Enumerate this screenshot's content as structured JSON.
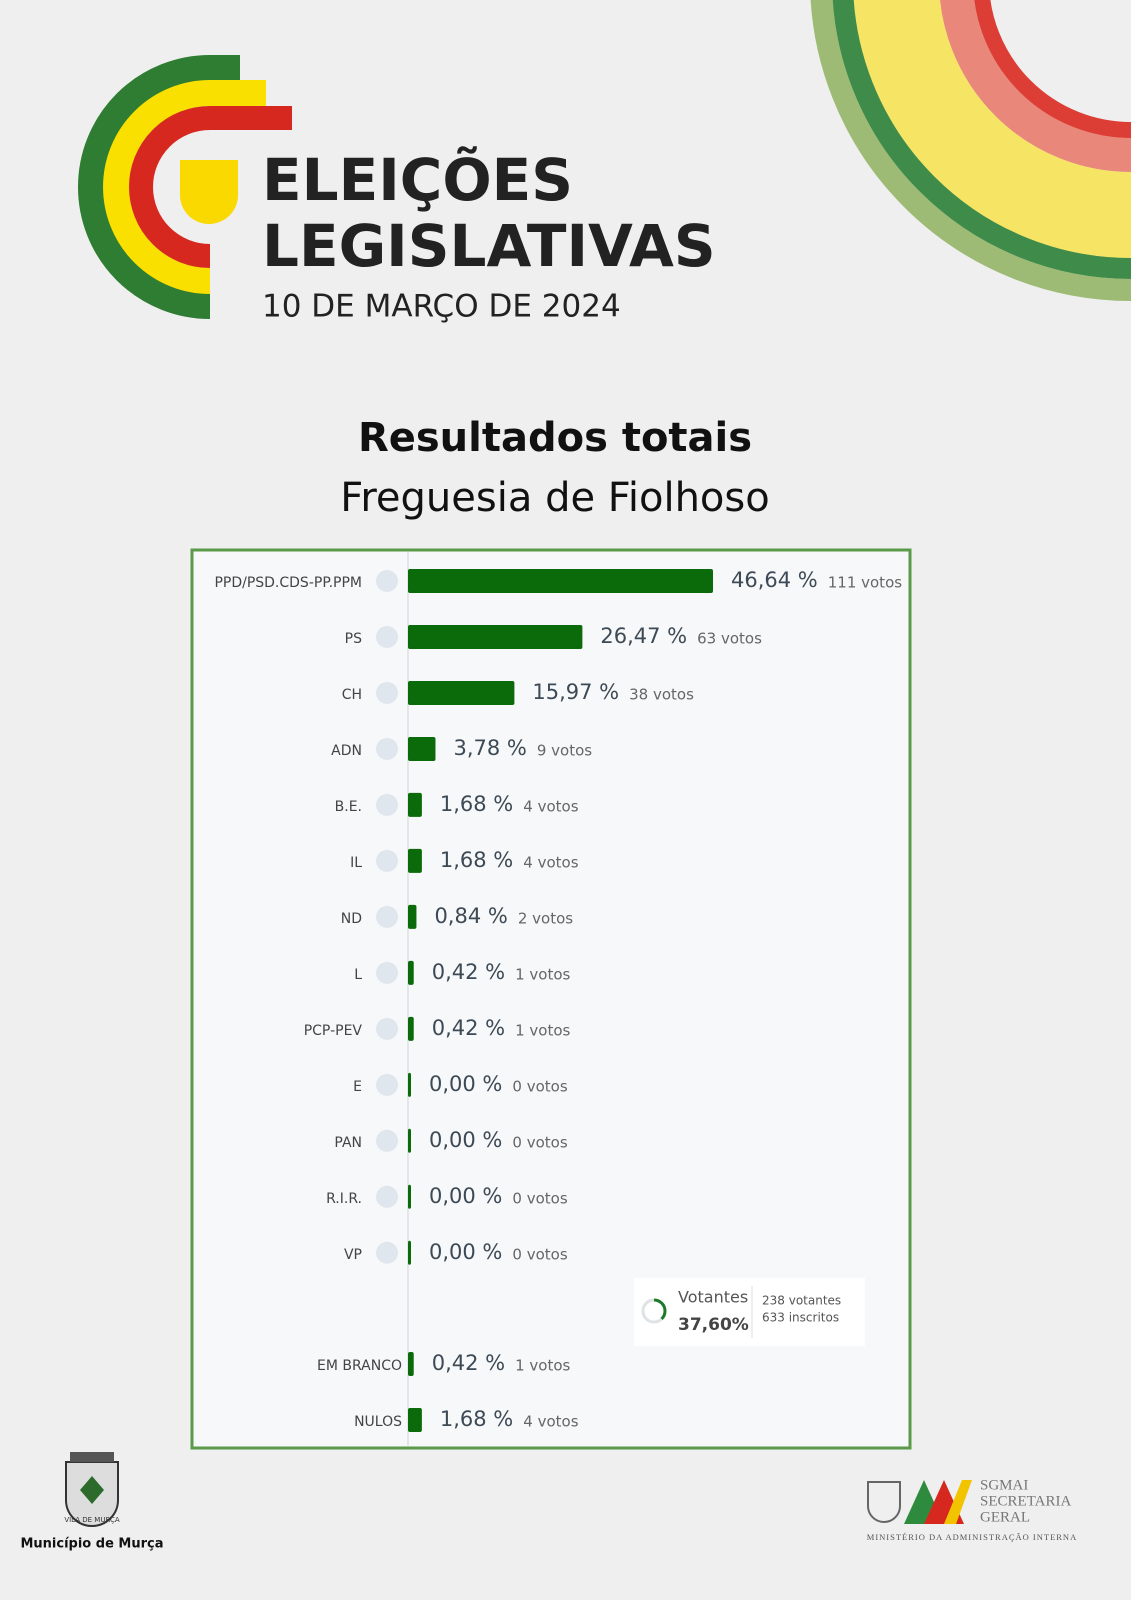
{
  "header": {
    "title_line1": "ELEIÇÕES",
    "title_line2": "LEGISLATIVAS",
    "date": "10 DE MARÇO DE 2024"
  },
  "chart_data": {
    "type": "bar",
    "title": "Resultados totais",
    "subtitle": "Freguesia de Fiolhoso",
    "color": "#0b6b0b",
    "categories": [
      "PPD/PSD.CDS-PP.PPM",
      "PS",
      "CH",
      "ADN",
      "B.E.",
      "IL",
      "ND",
      "L",
      "PCP-PEV",
      "E",
      "PAN",
      "R.I.R.",
      "VP",
      "EM BRANCO",
      "NULOS"
    ],
    "values": [
      46.64,
      26.47,
      15.97,
      3.78,
      1.68,
      1.68,
      0.84,
      0.42,
      0.42,
      0,
      0,
      0,
      0,
      0.42,
      1.68
    ],
    "value_labels": [
      "46,64 %",
      "26,47 %",
      "15,97 %",
      "3,78 %",
      "1,68 %",
      "1,68 %",
      "0,84 %",
      "0,42 %",
      "0,42 %",
      "0,00 %",
      "0,00 %",
      "0,00 %",
      "0,00 %",
      "0,42 %",
      "1,68 %"
    ],
    "vote_labels": [
      "111 votos",
      "63 votos",
      "38 votos",
      "9 votos",
      "4 votos",
      "4 votos",
      "2 votos",
      "1 votos",
      "1 votos",
      "0 votos",
      "0 votos",
      "0 votos",
      "0 votos",
      "1 votos",
      "4 votos"
    ]
  },
  "turnout": {
    "label": "Votantes",
    "value": 37.6,
    "value_label": "37,60%",
    "voters_label": "238 votantes",
    "registered_label": "633 inscritos"
  },
  "footer": {
    "municipality": "Município de Murça",
    "seal_text": "VILA DE MURÇA",
    "agency": "SGMAI",
    "agency_line2": "SECRETARIA",
    "agency_line3": "GERAL",
    "ministry": "MINISTÉRIO DA ADMINISTRAÇÃO INTERNA"
  }
}
